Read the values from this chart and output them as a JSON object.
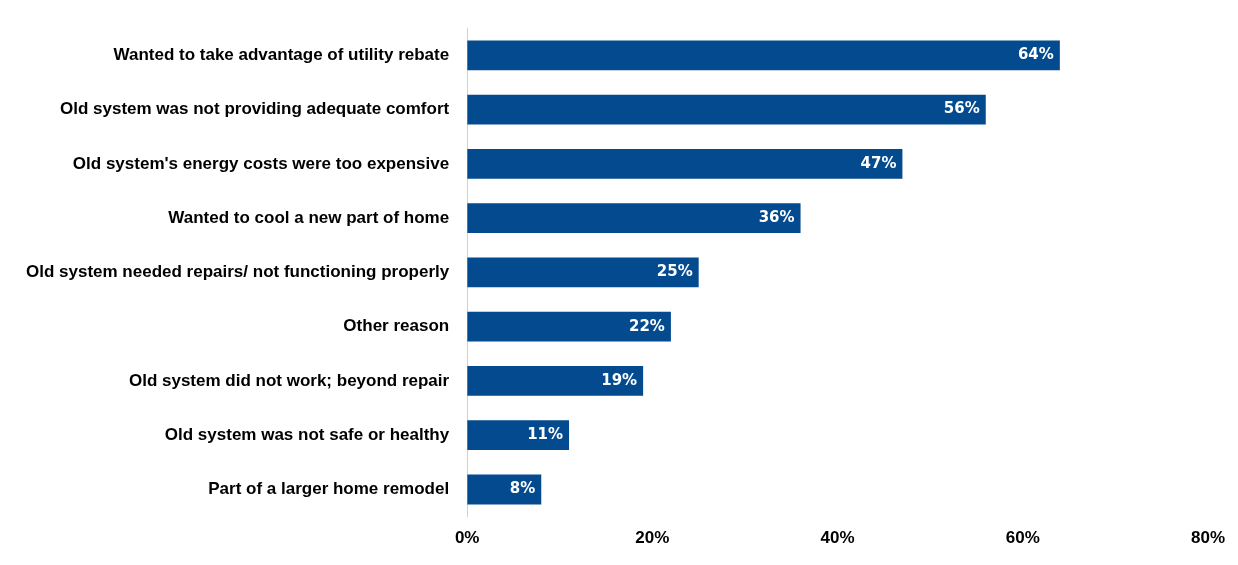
{
  "chart_data": {
    "type": "bar",
    "orientation": "horizontal",
    "categories": [
      "Wanted to take advantage of utility rebate",
      "Old system was not providing adequate comfort",
      "Old system's energy costs were too expensive",
      "Wanted to cool a new part of home",
      "Old system needed repairs/ not functioning properly",
      "Other reason",
      "Old system did not work; beyond repair",
      "Old system was not safe or healthy",
      "Part of a larger home remodel"
    ],
    "values": [
      64,
      56,
      47,
      36,
      25,
      22,
      19,
      11,
      8
    ],
    "value_labels": [
      "64%",
      "56%",
      "47%",
      "36%",
      "25%",
      "22%",
      "19%",
      "11%",
      "8%"
    ],
    "color": "#034a8f",
    "xlim": [
      0,
      80
    ],
    "xticks": [
      {
        "value": 0,
        "label": "0%"
      },
      {
        "value": 20,
        "label": "20%"
      },
      {
        "value": 40,
        "label": "40%"
      },
      {
        "value": 60,
        "label": "60%"
      },
      {
        "value": 80,
        "label": "80%"
      }
    ],
    "grid": false,
    "legend": false
  }
}
